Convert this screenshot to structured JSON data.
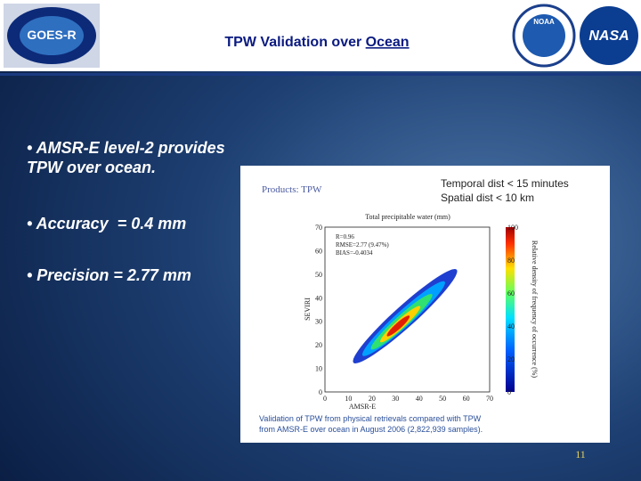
{
  "header": {
    "title_prefix": "TPW Validation over ",
    "title_underlined": "Ocean",
    "logos": [
      "GOES-R",
      "NOAA",
      "NASA"
    ]
  },
  "bullets": [
    [
      "• AMSR-E level-2 provides",
      "TPW over ocean."
    ],
    [
      "• Accuracy  = 0.4 mm"
    ],
    [
      "• Precision = 2.77 mm"
    ]
  ],
  "figure": {
    "products": "Products: TPW",
    "note_lines": [
      "Temporal dist < 15 minutes",
      "Spatial dist < 10 km"
    ],
    "plot_title": "Total precipitable water (mm)",
    "stats": [
      "R=0.96",
      "RMSE=2.77 (9.47%)",
      "BIAS=-0.4034"
    ],
    "x_label": "AMSR-E",
    "y_label": "SEVIRI",
    "x_ticks": [
      "0",
      "10",
      "20",
      "30",
      "40",
      "50",
      "60",
      "70"
    ],
    "y_ticks": [
      "0",
      "10",
      "20",
      "30",
      "40",
      "50",
      "60",
      "70"
    ],
    "colorbar_ticks": [
      "0",
      "20",
      "40",
      "60",
      "80",
      "100"
    ],
    "colorbar_label": "Relative density of frequency of occurrence (%)",
    "caption_lines": [
      "Validation of TPW from physical retrievals compared with TPW",
      "from AMSR-E over ocean in August 2006 (2,822,939 samples)."
    ]
  },
  "page_number": "11"
}
